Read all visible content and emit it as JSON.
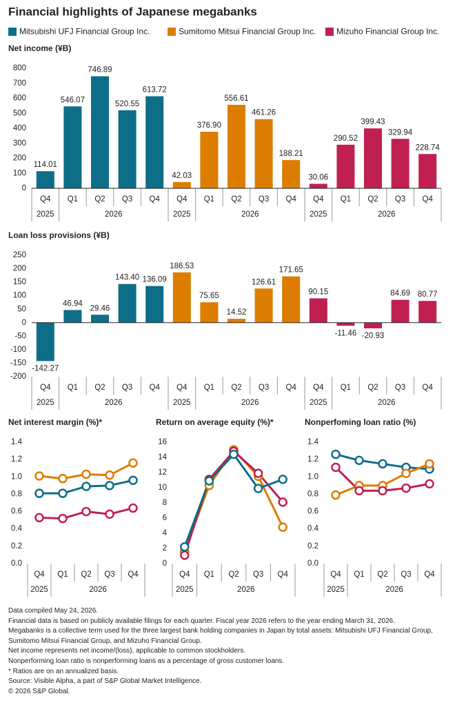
{
  "title": "Financial highlights of Japanese megabanks",
  "chart_data": [
    {
      "type": "bar",
      "title": "Net income (¥B)",
      "categories": [
        "Q4",
        "Q1",
        "Q2",
        "Q3",
        "Q4"
      ],
      "years": [
        "2025",
        "2026",
        "2026",
        "2026",
        "2026"
      ],
      "ylim": [
        0,
        800
      ],
      "yticks": [
        0,
        100,
        200,
        300,
        400,
        500,
        600,
        700,
        800
      ],
      "series": [
        {
          "name": "Mitsubishi UFJ Financial Group Inc.",
          "color": "#0e6e87",
          "values": [
            114.01,
            546.07,
            746.89,
            520.55,
            613.72
          ],
          "value_labels": [
            "114.01",
            "546.07",
            "746.89",
            "520.55",
            "613.72"
          ]
        },
        {
          "name": "Sumitomo Mitsui Financial Group Inc.",
          "color": "#dd7d00",
          "values": [
            42.03,
            376.9,
            556.61,
            461.26,
            188.21
          ],
          "value_labels": [
            "42.03",
            "376.90",
            "556.61",
            "461.26",
            "188.21"
          ]
        },
        {
          "name": "Mizuho Financial Group Inc.",
          "color": "#c0204f",
          "values": [
            30.06,
            290.52,
            399.43,
            329.94,
            228.74
          ],
          "value_labels": [
            "30.06",
            "290.52",
            "399.43",
            "329.94",
            "228.74"
          ]
        }
      ]
    },
    {
      "type": "bar",
      "title": "Loan loss provisions (¥B)",
      "categories": [
        "Q4",
        "Q1",
        "Q2",
        "Q3",
        "Q4"
      ],
      "years": [
        "2025",
        "2026",
        "2026",
        "2026",
        "2026"
      ],
      "ylim": [
        -200,
        250
      ],
      "yticks": [
        -200,
        -150,
        -100,
        -50,
        0,
        50,
        100,
        150,
        200,
        250
      ],
      "series": [
        {
          "color": "#0e6e87",
          "values": [
            -142.27,
            46.94,
            29.46,
            143.4,
            136.09
          ],
          "value_labels": [
            "-142.27",
            "46.94",
            "29.46",
            "143.40",
            "136.09"
          ]
        },
        {
          "color": "#dd7d00",
          "values": [
            186.53,
            75.65,
            14.52,
            126.61,
            171.65
          ],
          "value_labels": [
            "186.53",
            "75.65",
            "14.52",
            "126.61",
            "171.65"
          ]
        },
        {
          "color": "#c0204f",
          "values": [
            90.15,
            -11.46,
            -20.93,
            84.69,
            80.77
          ],
          "value_labels": [
            "90.15",
            "-11.46",
            "-20.93",
            "84.69",
            "80.77"
          ]
        }
      ]
    },
    {
      "type": "line",
      "title": "Net interest margin (%)*",
      "categories": [
        "Q4",
        "Q1",
        "Q2",
        "Q3",
        "Q4"
      ],
      "years": [
        "2025",
        "2026",
        "2026",
        "2026",
        "2026"
      ],
      "ylim": [
        0,
        1.4
      ],
      "yticks": [
        {
          "value": 0,
          "label": "0.0"
        },
        0.2,
        0.4,
        0.6,
        0.8,
        {
          "value": 1,
          "label": "1.0"
        },
        1.2,
        1.4
      ],
      "series": [
        {
          "color": "#0e6e87",
          "values": [
            0.81,
            0.81,
            0.89,
            0.9,
            0.96
          ]
        },
        {
          "color": "#dd7d00",
          "values": [
            1.01,
            0.98,
            1.03,
            1.02,
            1.16
          ]
        },
        {
          "color": "#c0204f",
          "values": [
            0.53,
            0.52,
            0.6,
            0.57,
            0.64
          ]
        }
      ]
    },
    {
      "type": "line",
      "title": "Return on average equity (%)*",
      "categories": [
        "Q4",
        "Q1",
        "Q2",
        "Q3",
        "Q4"
      ],
      "years": [
        "2025",
        "2026",
        "2026",
        "2026",
        "2026"
      ],
      "ylim": [
        0,
        16
      ],
      "yticks": [
        0,
        2,
        4,
        6,
        8,
        10,
        12,
        14,
        16
      ],
      "series": [
        {
          "color": "#dd7d00",
          "values": [
            1.6,
            10.3,
            15.0,
            11.5,
            4.8
          ]
        },
        {
          "color": "#c0204f",
          "values": [
            1.1,
            11.1,
            14.8,
            11.9,
            8.1
          ]
        },
        {
          "color": "#0e6e87",
          "values": [
            2.2,
            10.9,
            14.4,
            9.9,
            11.1
          ]
        }
      ]
    },
    {
      "type": "line",
      "title": "Nonperfoming loan ratio (%)",
      "categories": [
        "Q4",
        "Q1",
        "Q2",
        "Q3",
        "Q4"
      ],
      "years": [
        "2025",
        "2026",
        "2026",
        "2026",
        "2026"
      ],
      "ylim": [
        0,
        1.4
      ],
      "yticks": [
        {
          "value": 0,
          "label": "0.0"
        },
        0.2,
        0.4,
        0.6,
        0.8,
        {
          "value": 1,
          "label": "1.0"
        },
        1.2,
        1.4
      ],
      "series": [
        {
          "color": "#0e6e87",
          "values": [
            1.26,
            1.19,
            1.15,
            1.11,
            1.09
          ]
        },
        {
          "color": "#dd7d00",
          "values": [
            0.79,
            0.9,
            0.9,
            1.04,
            1.15
          ]
        },
        {
          "color": "#c0204f",
          "values": [
            1.11,
            0.84,
            0.84,
            0.87,
            0.92
          ]
        }
      ]
    }
  ],
  "notes": [
    "Data compiled May 24, 2026.",
    "Financial data is based on publicly available filings for each quarter. Fiscal year 2026 refers to the year ending March 31, 2026.",
    "Megabanks is a collective term used for the three largest bank holding companies in Japan by total assets: Mitsubishi UFJ Financial Group, Sumitomo Mitsui Financial Group, and Mizuho Financial Group.",
    "Net income represents net income/(loss), applicable to common stockholders.",
    "Nonperforming loan ratio is nonperforming loans as a percentage of gross customer loans.",
    "* Ratios are on an annualized basis.",
    "Source: Visible Alpha, a part of S&P Global Market Intelligence.",
    "© 2026 S&P Global."
  ]
}
